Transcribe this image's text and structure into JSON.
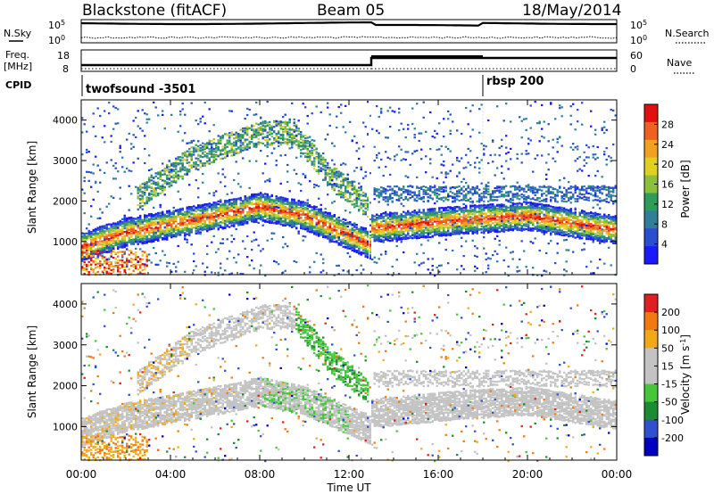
{
  "header": {
    "station": "Blackstone (fitACF)",
    "beam": "Beam 05",
    "date": "18/May/2014"
  },
  "noise_panel": {
    "left_label": "N.Sky",
    "right_label": "N.Search",
    "ticks_left": [
      "10^5",
      "10^0"
    ],
    "ticks_right": [
      "10^5",
      "10^0"
    ]
  },
  "freq_panel": {
    "left_label_1": "Freq.",
    "left_label_2": "[MHz]",
    "ticks_left": [
      "18",
      "8"
    ],
    "ticks_right": [
      "60",
      "0"
    ],
    "right_label": "Nave"
  },
  "cpid_panel": {
    "label": "CPID",
    "programs": [
      {
        "name": "twofsound  -3501",
        "start_hour": 0
      },
      {
        "name": "rbsp 200",
        "start_hour": 17.9
      }
    ]
  },
  "colors": {
    "power_scale": [
      "#1a1aff",
      "#2a4ed0",
      "#2f7f9a",
      "#2f9c5a",
      "#8cc03a",
      "#e0d020",
      "#f2a020",
      "#f06020",
      "#e01010"
    ],
    "velocity_scale": [
      "#0000c0",
      "#3050d0",
      "#1c8c30",
      "#46c63a",
      "#c3c3c3",
      "#c3c3c3",
      "#f0aa18",
      "#f07a10",
      "#e02020"
    ]
  },
  "chart_data": [
    {
      "type": "heatmap",
      "title": "Power",
      "xlabel": "",
      "ylabel": "Slant Range [km]",
      "xlim": [
        "00:00",
        "24:00"
      ],
      "ylim": [
        180,
        4500
      ],
      "x_ticks": [],
      "y_ticks": [
        "1000",
        "2000",
        "3000",
        "4000"
      ],
      "colorbar": {
        "label": "Power [dB]",
        "ticks": [
          "28",
          "24",
          "20",
          "16",
          "12",
          "8",
          "4"
        ],
        "range": [
          0,
          30
        ]
      },
      "features": [
        {
          "name": "main band",
          "range_km_by_hour": [
            [
              0,
              900
            ],
            [
              2,
              1250
            ],
            [
              5,
              1550
            ],
            [
              8,
              1880
            ],
            [
              10,
              1650
            ],
            [
              12.9,
              950
            ],
            [
              13,
              1350
            ],
            [
              17,
              1550
            ],
            [
              20,
              1650
            ],
            [
              24,
              1300
            ]
          ]
        },
        {
          "name": "upper band",
          "range_km_by_hour": [
            [
              2.5,
              2100
            ],
            [
              5,
              3100
            ],
            [
              8,
              3700
            ],
            [
              9.5,
              3700
            ],
            [
              11,
              2700
            ],
            [
              12.8,
              1900
            ]
          ]
        }
      ]
    },
    {
      "type": "heatmap",
      "title": "Velocity",
      "xlabel": "Time UT",
      "ylabel": "Slant Range [km]",
      "xlim": [
        "00:00",
        "24:00"
      ],
      "ylim": [
        180,
        4500
      ],
      "x_ticks": [
        "00:00",
        "04:00",
        "08:00",
        "12:00",
        "16:00",
        "20:00",
        "00:00"
      ],
      "y_ticks": [
        "1000",
        "2000",
        "3000",
        "4000"
      ],
      "colorbar": {
        "label": "Velocity [m s-1]",
        "ticks": [
          "200",
          "100",
          "50",
          "15",
          "-15",
          "-50",
          "-100",
          "-200"
        ],
        "range": [
          -250,
          250
        ]
      }
    }
  ]
}
